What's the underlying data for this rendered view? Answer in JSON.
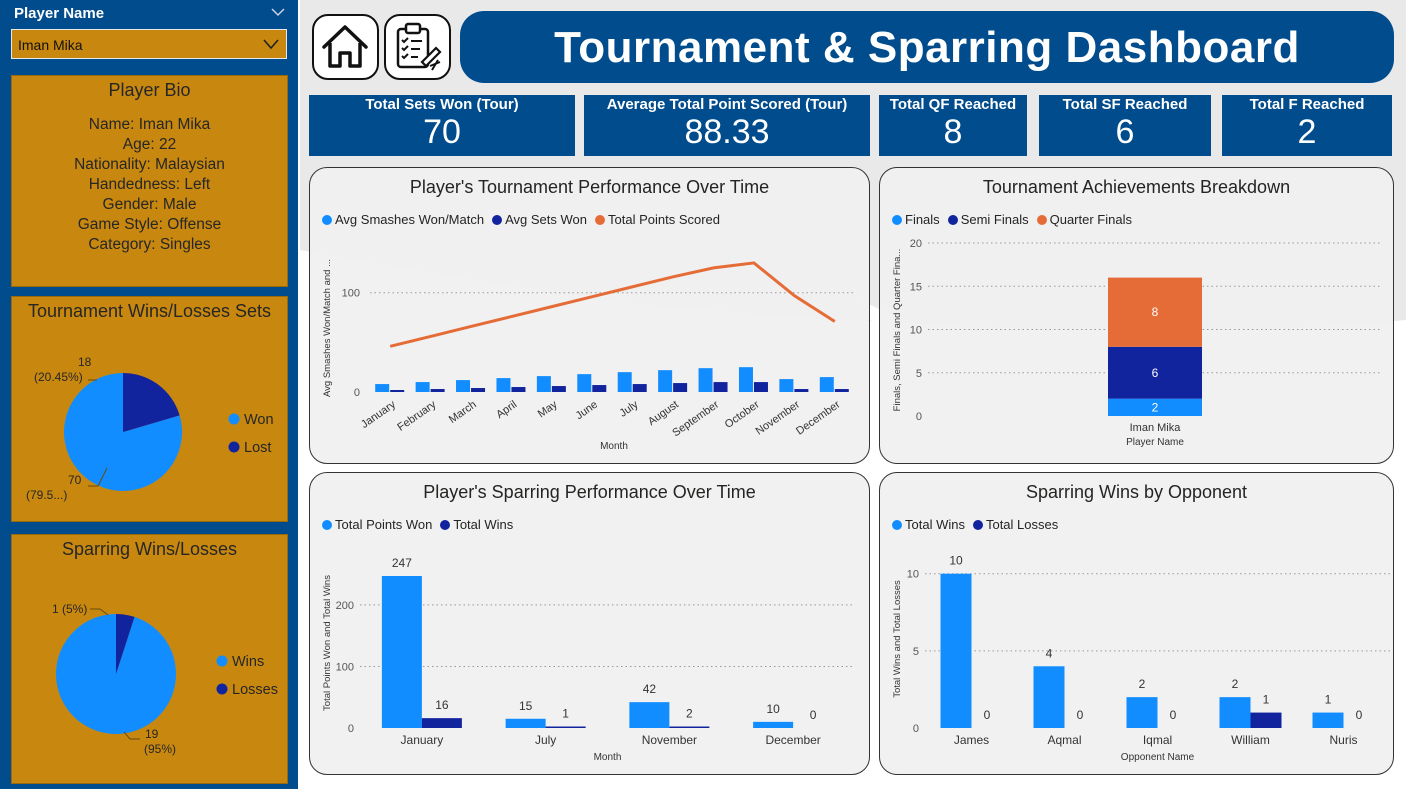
{
  "colors": {
    "navy": "#004c8c",
    "gold": "#c8880f",
    "light_blue": "#118dff",
    "dark_blue": "#12239e",
    "orange": "#e66c37"
  },
  "slicer": {
    "label": "Player Name",
    "value": "Iman Mika",
    "icon": "chevron-down-icon"
  },
  "bio": {
    "title": "Player Bio",
    "lines": [
      "Name: Iman Mika",
      "Age: 22",
      "Nationality: Malaysian",
      "Handedness: Left",
      "Gender: Male",
      "Game Style: Offense",
      "Category: Singles"
    ]
  },
  "header": {
    "title": "Tournament & Sparring Dashboard",
    "home_icon": "home-icon",
    "report_icon": "clipboard-icon"
  },
  "kpis": [
    {
      "label": "Total Sets Won (Tour)",
      "value": "70"
    },
    {
      "label": "Average Total Point Scored (Tour)",
      "value": "88.33"
    },
    {
      "label": "Total QF Reached",
      "value": "8"
    },
    {
      "label": "Total SF Reached",
      "value": "6"
    },
    {
      "label": "Total F Reached",
      "value": "2"
    }
  ],
  "chart_data": [
    {
      "id": "tour_wl",
      "type": "pie",
      "title": "Tournament Wins/Losses Sets",
      "slices": [
        {
          "name": "Won",
          "value": 70,
          "label_top": "70",
          "label_bottom": "(79.5...)"
        },
        {
          "name": "Lost",
          "value": 18,
          "label_top": "18",
          "label_bottom": "(20.45%)"
        }
      ],
      "legend_position": "right"
    },
    {
      "id": "spar_wl",
      "type": "pie",
      "title": "Sparring Wins/Losses",
      "slices": [
        {
          "name": "Wins",
          "value": 19,
          "label_top": "19",
          "label_bottom": "(95%)"
        },
        {
          "name": "Losses",
          "value": 1,
          "label_top": "1 (5%)",
          "label_bottom": ""
        }
      ],
      "legend_position": "right"
    },
    {
      "id": "tour_perf",
      "type": "bar",
      "title": "Player's Tournament Performance Over Time",
      "categories": [
        "January",
        "February",
        "March",
        "April",
        "May",
        "June",
        "July",
        "August",
        "September",
        "October",
        "November",
        "December"
      ],
      "series": [
        {
          "name": "Avg Smashes Won/Match",
          "kind": "bar",
          "values": [
            8,
            10,
            12,
            14,
            16,
            18,
            20,
            22,
            24,
            25,
            13,
            15
          ]
        },
        {
          "name": "Avg Sets Won",
          "kind": "bar",
          "values": [
            2,
            3,
            4,
            5,
            6,
            7,
            8,
            9,
            10,
            10,
            3,
            3
          ]
        },
        {
          "name": "Total Points Scored",
          "kind": "line",
          "values": [
            46,
            56,
            66,
            76,
            86,
            96,
            106,
            116,
            125,
            130,
            97,
            71
          ]
        }
      ],
      "xlabel": "Month",
      "ylabel": "Avg Smashes Won/Match and ...",
      "yticks": [
        0,
        100
      ],
      "ylim": [
        0,
        140
      ],
      "legend_position": "top-left",
      "grid": true
    },
    {
      "id": "achievements",
      "type": "bar",
      "stacked": true,
      "title": "Tournament Achievements Breakdown",
      "categories": [
        "Iman Mika"
      ],
      "series": [
        {
          "name": "Finals",
          "values": [
            2
          ]
        },
        {
          "name": "Semi Finals",
          "values": [
            6
          ]
        },
        {
          "name": "Quarter Finals",
          "values": [
            8
          ]
        }
      ],
      "xlabel": "Player Name",
      "ylabel": "Finals, Semi Finals and Quarter Fina...",
      "yticks": [
        0,
        5,
        10,
        15,
        20
      ],
      "ylim": [
        0,
        20
      ],
      "legend_position": "top-left",
      "grid": true
    },
    {
      "id": "spar_perf",
      "type": "bar",
      "title": "Player's Sparring Performance Over Time",
      "categories": [
        "January",
        "July",
        "November",
        "December"
      ],
      "series": [
        {
          "name": "Total Points Won",
          "values": [
            247,
            15,
            42,
            10
          ]
        },
        {
          "name": "Total Wins",
          "values": [
            16,
            1,
            2,
            0
          ]
        }
      ],
      "xlabel": "Month",
      "ylabel": "Total Points Won and Total Wins",
      "yticks": [
        0,
        100,
        200
      ],
      "ylim": [
        0,
        260
      ],
      "legend_position": "top-left",
      "grid": true
    },
    {
      "id": "spar_opp",
      "type": "bar",
      "title": "Sparring Wins by Opponent",
      "categories": [
        "James",
        "Aqmal",
        "Iqmal",
        "William",
        "Nuris"
      ],
      "series": [
        {
          "name": "Total Wins",
          "values": [
            10,
            4,
            2,
            2,
            1
          ]
        },
        {
          "name": "Total Losses",
          "values": [
            0,
            0,
            0,
            1,
            0
          ]
        }
      ],
      "xlabel": "Opponent Name",
      "ylabel": "Total Wins and Total Losses",
      "yticks": [
        0,
        5,
        10
      ],
      "ylim": [
        0,
        10.5
      ],
      "legend_position": "top-left",
      "grid": true
    }
  ]
}
